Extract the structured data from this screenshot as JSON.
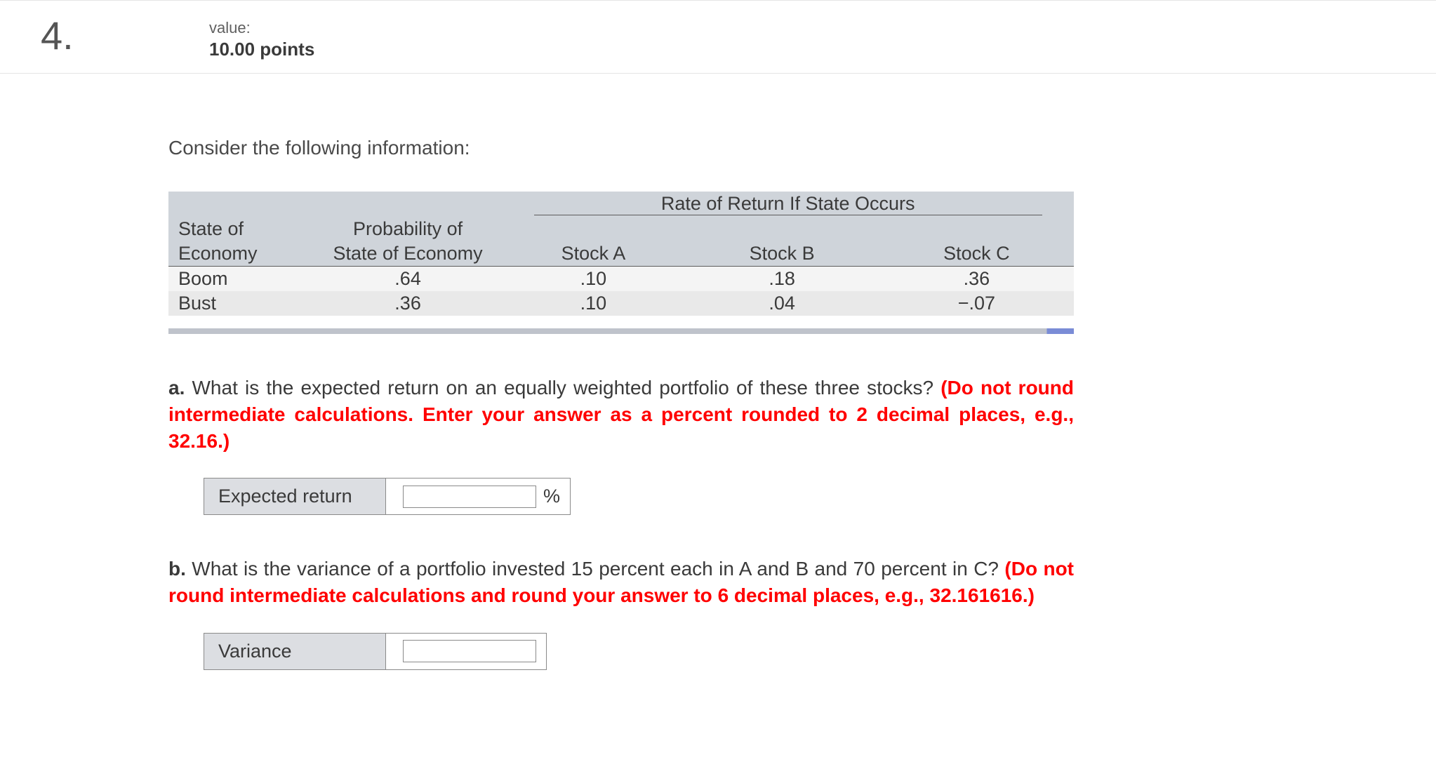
{
  "question_number": "4.",
  "value_label": "value:",
  "points": "10.00 points",
  "intro": "Consider the following information:",
  "table": {
    "rate_header": "Rate of Return If State Occurs",
    "col_state_l1": "State of",
    "col_state_l2": "Economy",
    "col_prob_l1": "Probability of",
    "col_prob_l2": "State of Economy",
    "col_stock_a": "Stock A",
    "col_stock_b": "Stock B",
    "col_stock_c": "Stock C",
    "rows": [
      {
        "state": "Boom",
        "prob": ".64",
        "a": ".10",
        "b": ".18",
        "c": ".36"
      },
      {
        "state": "Bust",
        "prob": ".36",
        "a": ".10",
        "b": ".04",
        "c": "−.07"
      }
    ]
  },
  "part_a": {
    "letter": "a.",
    "text_black": " What is the expected return on an equally weighted portfolio of these three stocks? ",
    "text_red": "(Do not round intermediate calculations. Enter your answer as a percent rounded to 2 decimal places, e.g., 32.16.)",
    "answer_label": "Expected return",
    "unit": "%"
  },
  "part_b": {
    "letter": "b.",
    "text_black": " What is the variance of a portfolio invested 15 percent each in A and B and 70 percent in C? ",
    "text_red": "(Do not round intermediate calculations and round your answer to 6 decimal places, e.g., 32.161616.)",
    "answer_label": "Variance"
  }
}
